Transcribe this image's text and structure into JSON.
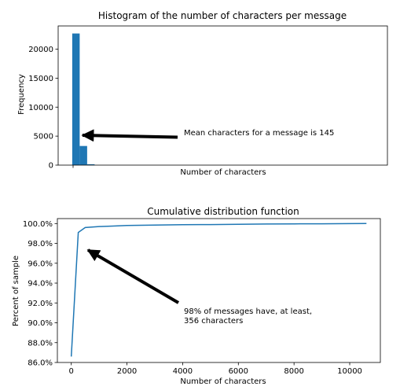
{
  "chart_data": [
    {
      "type": "bar",
      "title": "Histogram of the number of characters per message",
      "xlabel": "Number of characters",
      "ylabel": "Frequency",
      "xlim": [
        -500,
        11200
      ],
      "ylim": [
        0,
        24000
      ],
      "yticks": [
        0,
        5000,
        10000,
        15000,
        20000
      ],
      "bin_width": 265,
      "bin_starts": [
        0,
        265,
        530
      ],
      "values": [
        22700,
        3300,
        150
      ],
      "color": "#1f77b4",
      "annotation": {
        "text": "Mean characters for a message is 145",
        "xy": [
          600,
          5000
        ],
        "xytext": [
          3600,
          4800
        ]
      }
    },
    {
      "type": "line",
      "title": "Cumulative distribution function",
      "xlabel": "Number of characters",
      "ylabel": "Percent of sample",
      "xlim": [
        -500,
        11100
      ],
      "ylim": [
        86,
        100.5
      ],
      "xticks": [
        0,
        2000,
        4000,
        6000,
        8000,
        10000
      ],
      "xtick_labels": [
        "0",
        "2000",
        "4000",
        "6000",
        "8000",
        "10000"
      ],
      "yticks": [
        86,
        88,
        90,
        92,
        94,
        96,
        98,
        100
      ],
      "ytick_labels": [
        "86.0%",
        "88.0%",
        "90.0%",
        "92.0%",
        "94.0%",
        "96.0%",
        "98.0%",
        "100.0%"
      ],
      "series": [
        {
          "x": [
            0,
            250,
            500,
            1000,
            1500,
            2000,
            3000,
            4000,
            5000,
            6000,
            7000,
            8000,
            9000,
            10000,
            10600
          ],
          "y": [
            86.6,
            99.1,
            99.6,
            99.7,
            99.75,
            99.8,
            99.85,
            99.88,
            99.9,
            99.92,
            99.95,
            99.97,
            99.98,
            99.99,
            100.0
          ]
        }
      ],
      "color": "#1f77b4",
      "annotation": {
        "text_lines": [
          "98% of messages have, at least,",
          "356 characters"
        ],
        "xy": [
          500,
          97.7
        ],
        "xytext": [
          3800,
          92.1
        ]
      }
    }
  ]
}
